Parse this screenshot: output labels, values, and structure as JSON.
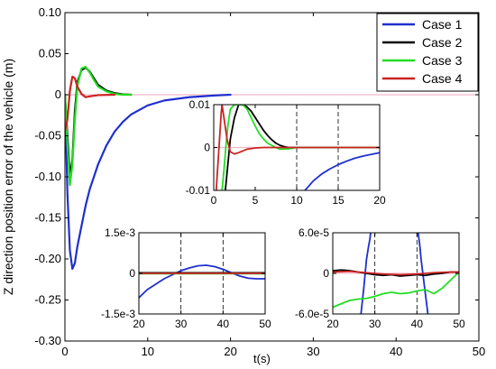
{
  "chart_data": [
    {
      "id": "main",
      "type": "line",
      "title": "",
      "xlabel": "t(s)",
      "ylabel": "Z direction position error of the vehicle (m)",
      "xlim": [
        0,
        50
      ],
      "ylim": [
        -0.3,
        0.1
      ],
      "xticks": [
        0,
        10,
        20,
        30,
        40,
        50
      ],
      "xtick_labels": [
        "0",
        "10",
        "20",
        "30",
        "40",
        "50"
      ],
      "yticks": [
        -0.3,
        -0.25,
        -0.2,
        -0.15,
        -0.1,
        -0.05,
        0,
        0.05,
        0.1
      ],
      "ytick_labels": [
        "-0.30",
        "-0.25",
        "-0.20",
        "-0.15",
        "-0.10",
        "-0.05",
        "0",
        "0.05",
        "0.10"
      ],
      "grid": false,
      "legend_position": "top-right",
      "series": [
        {
          "name": "Case 1",
          "color": "#1f2fd0",
          "x": [
            0,
            0.3,
            0.6,
            0.9,
            1.2,
            1.5,
            2,
            2.5,
            3,
            4,
            5,
            6,
            7,
            8,
            10,
            12,
            15,
            18,
            20
          ],
          "y": [
            0,
            -0.12,
            -0.19,
            -0.212,
            -0.205,
            -0.185,
            -0.16,
            -0.135,
            -0.115,
            -0.085,
            -0.062,
            -0.045,
            -0.033,
            -0.024,
            -0.013,
            -0.007,
            -0.003,
            -0.001,
            0
          ]
        },
        {
          "name": "Case 2",
          "color": "#000000",
          "x": [
            0,
            0.3,
            0.6,
            0.9,
            1.2,
            1.5,
            2,
            2.5,
            3,
            3.5,
            4,
            5,
            6,
            7,
            8
          ],
          "y": [
            0,
            -0.05,
            -0.1,
            -0.08,
            -0.02,
            0.015,
            0.03,
            0.033,
            0.028,
            0.02,
            0.012,
            0.005,
            0.002,
            0.0005,
            0
          ]
        },
        {
          "name": "Case 3",
          "color": "#22dd22",
          "x": [
            0,
            0.3,
            0.6,
            0.9,
            1.2,
            1.5,
            2,
            2.5,
            3,
            3.5,
            4,
            5,
            6,
            7,
            8
          ],
          "y": [
            0,
            -0.06,
            -0.11,
            -0.085,
            -0.03,
            0.01,
            0.032,
            0.034,
            0.027,
            0.018,
            0.01,
            0.004,
            0.001,
            0,
            0
          ]
        },
        {
          "name": "Case 4",
          "color": "#cc2222",
          "x": [
            0,
            0.3,
            0.6,
            0.9,
            1.2,
            1.5,
            2,
            2.5,
            3,
            4,
            6
          ],
          "y": [
            -0.045,
            -0.03,
            0.005,
            0.022,
            0.02,
            0.01,
            0.001,
            -0.003,
            -0.002,
            -0.0005,
            0
          ]
        }
      ]
    },
    {
      "id": "inset_0_20",
      "type": "line",
      "title": "",
      "xlim": [
        0,
        20
      ],
      "ylim": [
        -0.01,
        0.01
      ],
      "xticks": [
        0,
        5,
        10,
        15,
        20
      ],
      "xtick_labels": [
        "0",
        "5",
        "10",
        "15",
        "20"
      ],
      "yticks": [
        -0.01,
        0,
        0.01
      ],
      "ytick_labels": [
        "-0.01",
        "0",
        "0.01"
      ],
      "dashed_vlines": [
        10,
        15
      ],
      "series": [
        {
          "name": "Case 1",
          "color": "#1f2fd0",
          "x": [
            11,
            12,
            13,
            14,
            15,
            16,
            17,
            18,
            19,
            20
          ],
          "y": [
            -0.01,
            -0.0078,
            -0.0062,
            -0.005,
            -0.004,
            -0.0032,
            -0.0025,
            -0.002,
            -0.0016,
            -0.0012
          ]
        },
        {
          "name": "Case 2",
          "color": "#000000",
          "x": [
            1.4,
            2.0,
            2.5,
            3.0,
            3.5,
            4.0,
            4.5,
            5.0,
            5.5,
            6.0,
            6.5,
            7.0,
            7.5,
            8.0,
            8.5,
            9,
            20
          ],
          "y": [
            -0.01,
            0.002,
            0.007,
            0.01,
            0.01,
            0.0095,
            0.0085,
            0.007,
            0.0055,
            0.004,
            0.0028,
            0.0018,
            0.001,
            0.0005,
            0.0002,
            0,
            0
          ]
        },
        {
          "name": "Case 3",
          "color": "#22dd22",
          "x": [
            1.0,
            1.2,
            1.5,
            1.7,
            2.0,
            2.5,
            3.0,
            3.5,
            4.0,
            4.5,
            5.0,
            5.5,
            6.0,
            6.5,
            7.0,
            7.5,
            8.0,
            9.0,
            10,
            20
          ],
          "y": [
            -0.01,
            -0.006,
            0.001,
            0.005,
            0.009,
            0.01,
            0.01,
            0.01,
            0.009,
            0.007,
            0.005,
            0.0032,
            0.002,
            0.001,
            0.0005,
            0,
            -0.0004,
            -0.0003,
            0,
            0
          ]
        },
        {
          "name": "Case 4",
          "color": "#cc2222",
          "x": [
            0.3,
            0.5,
            0.7,
            0.9,
            1.0,
            1.3,
            1.6,
            2.0,
            2.5,
            3.0,
            3.5,
            4.0,
            5.0,
            6.0,
            20
          ],
          "y": [
            -0.01,
            -0.004,
            0.002,
            0.008,
            0.01,
            0.006,
            0.002,
            -0.001,
            -0.0015,
            -0.0012,
            -0.0008,
            -0.0004,
            -0.0001,
            0,
            0
          ]
        }
      ]
    },
    {
      "id": "inset_20_50_a",
      "type": "line",
      "title": "",
      "xlim": [
        20,
        50
      ],
      "ylim": [
        -0.0015,
        0.0015
      ],
      "xticks": [
        20,
        30,
        40,
        50
      ],
      "xtick_labels": [
        "20",
        "30",
        "40",
        "50"
      ],
      "yticks": [
        -0.0015,
        0,
        0.0015
      ],
      "ytick_labels": [
        "-1.5e-3",
        "0",
        "1.5e-3"
      ],
      "dashed_vlines": [
        30,
        40
      ],
      "series": [
        {
          "name": "Case 1",
          "color": "#1f2fd0",
          "x": [
            20,
            22,
            24,
            26,
            28,
            30,
            32,
            34,
            36,
            38,
            40,
            42,
            44,
            46,
            48,
            50
          ],
          "y": [
            -0.0009,
            -0.0006,
            -0.0004,
            -0.0002,
            -5e-05,
            0.0001,
            0.0002,
            0.00028,
            0.0003,
            0.00025,
            0.00015,
            2e-05,
            -0.0001,
            -0.00018,
            -0.0002,
            -0.0002
          ]
        },
        {
          "name": "Case 2",
          "color": "#000000",
          "x": [
            20,
            50
          ],
          "y": [
            2e-05,
            2e-05
          ]
        },
        {
          "name": "Case 3",
          "color": "#22dd22",
          "x": [
            20,
            50
          ],
          "y": [
            -1e-05,
            -1e-05
          ]
        },
        {
          "name": "Case 4",
          "color": "#cc2222",
          "x": [
            20,
            50
          ],
          "y": [
            0,
            0
          ]
        }
      ]
    },
    {
      "id": "inset_20_50_b",
      "type": "line",
      "title": "",
      "xlim": [
        20,
        50
      ],
      "ylim": [
        -6e-05,
        6e-05
      ],
      "xticks": [
        20,
        30,
        40,
        50
      ],
      "xtick_labels": [
        "20",
        "30",
        "40",
        "50"
      ],
      "yticks": [
        -6e-05,
        0,
        6e-05
      ],
      "ytick_labels": [
        "-6.0e-5",
        "0",
        "6.0e-5"
      ],
      "dashed_vlines": [
        30,
        40
      ],
      "series": [
        {
          "name": "Case 1",
          "color": "#1f2fd0",
          "x": [
            26.7,
            27.4,
            28.0,
            28.5,
            28.8,
            29.0
          ],
          "y": [
            -6e-05,
            -2e-05,
            2e-05,
            4e-05,
            5e-05,
            6e-05
          ]
        },
        {
          "name": "Case 1",
          "color": "#1f2fd0",
          "x": [
            40.3,
            40.7,
            41.0,
            41.4,
            42.0,
            42.6
          ],
          "y": [
            6e-05,
            4e-05,
            2e-05,
            0,
            -3e-05,
            -6e-05
          ]
        },
        {
          "name": "Case 2",
          "color": "#000000",
          "x": [
            20,
            22,
            24,
            26,
            28,
            30,
            32,
            34,
            36,
            38,
            40,
            42,
            44,
            46,
            48,
            50
          ],
          "y": [
            4e-06,
            5e-06,
            4e-06,
            2e-06,
            0,
            -2e-06,
            -3e-06,
            -2e-06,
            -4e-06,
            -3e-06,
            -2e-06,
            -3e-06,
            -1e-06,
            0,
            2e-06,
            2e-06
          ]
        },
        {
          "name": "Case 3",
          "color": "#22dd22",
          "x": [
            20,
            22,
            24,
            26,
            28,
            30,
            32,
            34,
            36,
            38,
            40,
            42,
            44,
            46,
            48,
            50
          ],
          "y": [
            -5e-05,
            -4.5e-05,
            -4e-05,
            -3.8e-05,
            -3.7e-05,
            -3.4e-05,
            -3e-05,
            -2.8e-05,
            -3e-05,
            -2.9e-05,
            -2.6e-05,
            -2.4e-05,
            -3e-05,
            -2.2e-05,
            -1e-05,
            2e-06
          ]
        },
        {
          "name": "Case 4",
          "color": "#cc2222",
          "x": [
            20,
            24,
            28,
            32,
            36,
            40,
            44,
            48,
            50
          ],
          "y": [
            2e-06,
            3e-06,
            1e-06,
            -1e-06,
            -2e-06,
            -1e-06,
            1e-06,
            2e-06,
            2e-06
          ]
        }
      ]
    }
  ]
}
